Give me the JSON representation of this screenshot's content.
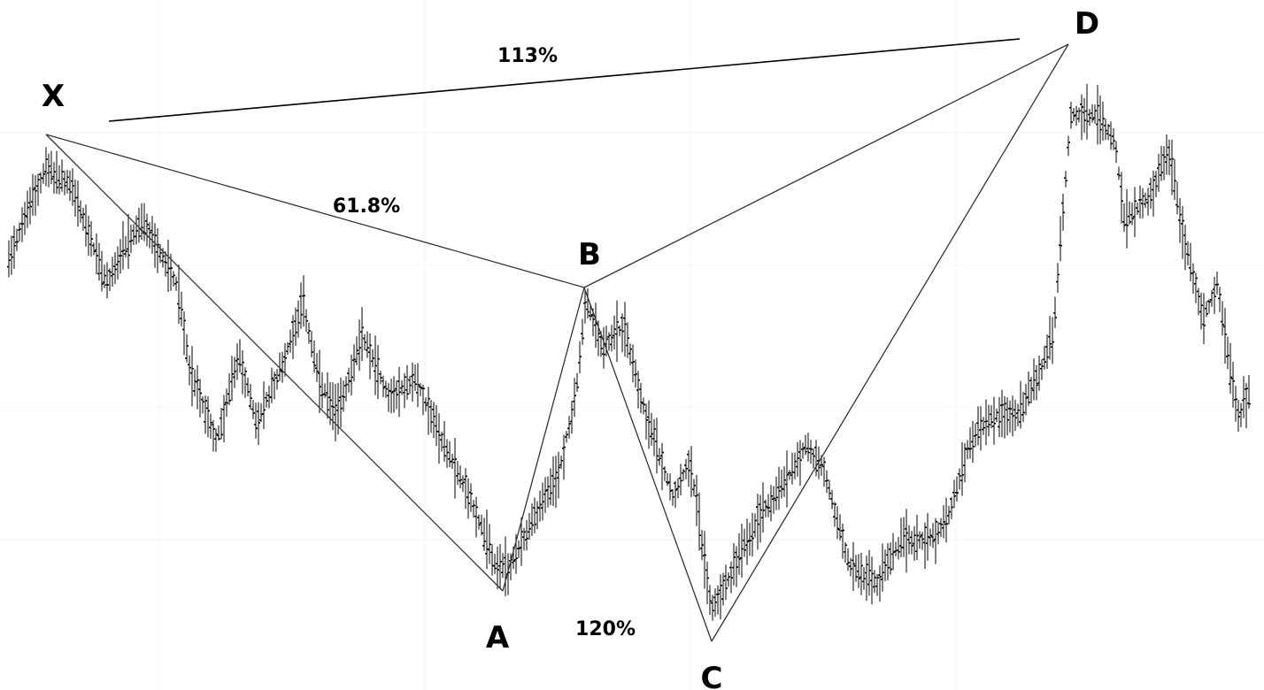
{
  "chart_data": {
    "type": "ohlc",
    "title": "",
    "xlabel": "",
    "ylabel": "",
    "grid": true,
    "legend": "none",
    "colors": {
      "bars": "#000000",
      "pattern_lines": "#333333",
      "ratio_line": "#000000",
      "background": "#ffffff",
      "grid": "#f4f4f4"
    },
    "pattern_points": [
      {
        "name": "X",
        "label": "X"
      },
      {
        "name": "A",
        "label": "A"
      },
      {
        "name": "B",
        "label": "B"
      },
      {
        "name": "C",
        "label": "C"
      },
      {
        "name": "D",
        "label": "D"
      }
    ],
    "ratio_labels": [
      {
        "name": "xd-ratio",
        "label": "113%"
      },
      {
        "name": "xb-ratio",
        "label": "61.8%"
      },
      {
        "name": "bc-ratio",
        "label": "120%"
      }
    ]
  }
}
